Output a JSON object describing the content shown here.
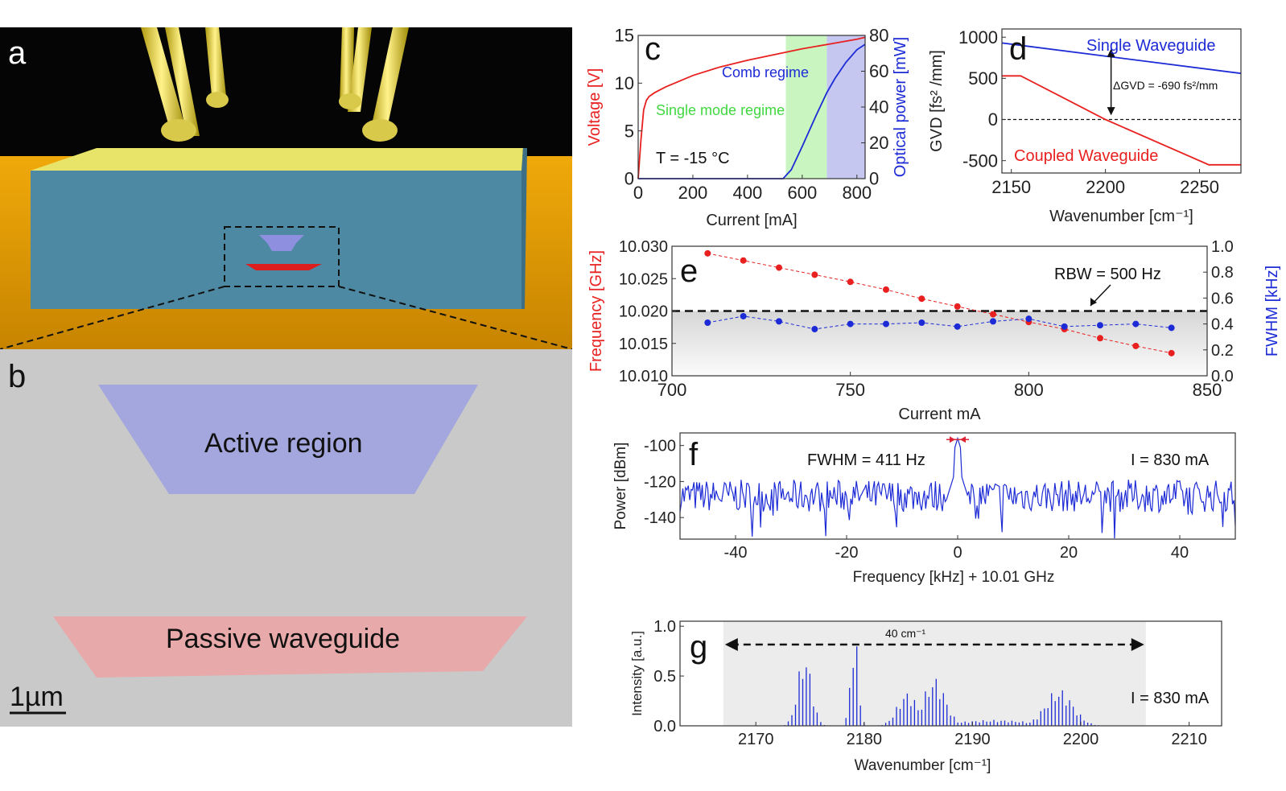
{
  "panels": {
    "a": {
      "label": "a"
    },
    "b": {
      "label": "b",
      "active_region": "Active region",
      "passive_waveguide": "Passive waveguide",
      "scale_bar": "1µm",
      "colors": {
        "background": "#c8c8c8",
        "active": "#9fa4de",
        "passive": "#e9a6a6"
      }
    }
  },
  "chart_data": [
    {
      "panel": "c",
      "type": "line",
      "xlabel": "Current [mA]",
      "ylabel": "Voltage [V]",
      "ylabel2": "Optical power [mW]",
      "xlim": [
        0,
        830
      ],
      "ylim": [
        0,
        15
      ],
      "ylim2": [
        0,
        80
      ],
      "xticks": [
        0,
        200,
        400,
        600,
        800
      ],
      "yticks": [
        0,
        5,
        10,
        15
      ],
      "yticks2": [
        0,
        20,
        40,
        60,
        80
      ],
      "annotations": {
        "comb": "Comb regime",
        "single": "Single mode regime",
        "temp": "T = -15 °C"
      },
      "regions": [
        {
          "name": "single",
          "x": [
            540,
            690
          ],
          "color": "#c8f5c0"
        },
        {
          "name": "comb",
          "x": [
            690,
            830
          ],
          "color": "#c5c7f0"
        }
      ],
      "series": [
        {
          "axis": "left",
          "color": "#e8201f",
          "x": [
            0,
            10,
            20,
            30,
            40,
            60,
            100,
            200,
            300,
            400,
            500,
            600,
            700,
            800,
            830
          ],
          "values": [
            0,
            4,
            7.2,
            8.2,
            8.6,
            9.0,
            9.6,
            10.8,
            11.7,
            12.4,
            13.0,
            13.6,
            14.1,
            14.6,
            14.8
          ]
        },
        {
          "axis": "right",
          "color": "#1d2bd6",
          "x": [
            0,
            530,
            560,
            600,
            650,
            690,
            720,
            760,
            800,
            830
          ],
          "values": [
            0,
            0,
            5,
            18,
            35,
            48,
            56,
            65,
            72,
            75
          ]
        }
      ]
    },
    {
      "panel": "d",
      "type": "line",
      "xlabel": "Wavenumber [cm⁻¹]",
      "ylabel": "GVD [fs² /mm]",
      "xlim": [
        2145,
        2272
      ],
      "ylim": [
        -650,
        1100
      ],
      "xticks": [
        2150,
        2200,
        2250
      ],
      "yticks": [
        -500,
        0,
        500,
        1000
      ],
      "annotations": {
        "single": "Single Waveguide",
        "coupled": "Coupled Waveguide",
        "delta": "ΔGVD = -690 fs²/mm"
      },
      "series": [
        {
          "name": "Single Waveguide",
          "color": "#1d2bd6",
          "x": [
            2145,
            2272
          ],
          "values": [
            930,
            560
          ]
        },
        {
          "name": "Coupled Waveguide",
          "color": "#e8201f",
          "x": [
            2145,
            2155,
            2200,
            2255,
            2272
          ],
          "values": [
            530,
            530,
            0,
            -550,
            -550
          ]
        }
      ]
    },
    {
      "panel": "e",
      "type": "scatter",
      "xlabel": "Current mA",
      "ylabel": "Frequency [GHz]",
      "ylabel2": "FWHM [kHz]",
      "xlim": [
        700,
        850
      ],
      "ylim": [
        10.01,
        10.03
      ],
      "ylim2": [
        0,
        1.0
      ],
      "xticks": [
        700,
        750,
        800,
        850
      ],
      "yticks": [
        "10.010",
        "10.015",
        "10.020",
        "10.025",
        "10.030"
      ],
      "yticks2": [
        "0.0",
        "0.2",
        "0.4",
        "0.6",
        "0.8",
        "1.0"
      ],
      "annotations": {
        "rbw": "RBW = 500 Hz"
      },
      "rbw_level": 0.5,
      "series": [
        {
          "axis": "left",
          "color": "#e8201f",
          "x": [
            710,
            720,
            730,
            740,
            750,
            760,
            770,
            780,
            790,
            800,
            810,
            820,
            830,
            840
          ],
          "values": [
            10.0289,
            10.0278,
            10.0267,
            10.0256,
            10.0245,
            10.0233,
            10.0219,
            10.0207,
            10.0195,
            10.0183,
            10.0172,
            10.0158,
            10.0146,
            10.0135
          ]
        },
        {
          "axis": "right",
          "color": "#1d2bd6",
          "x": [
            710,
            720,
            730,
            740,
            750,
            760,
            770,
            780,
            790,
            800,
            810,
            820,
            830,
            840
          ],
          "values": [
            0.41,
            0.46,
            0.42,
            0.36,
            0.4,
            0.4,
            0.41,
            0.38,
            0.42,
            0.44,
            0.38,
            0.39,
            0.4,
            0.37
          ]
        }
      ]
    },
    {
      "panel": "f",
      "type": "line",
      "xlabel": "Frequency [kHz] + 10.01 GHz",
      "ylabel": "Power [dBm]",
      "xlim": [
        -50,
        50
      ],
      "ylim": [
        -152,
        -93
      ],
      "xticks": [
        -40,
        -20,
        0,
        20,
        40
      ],
      "yticks": [
        -140,
        -120,
        -100
      ],
      "annotations": {
        "fwhm": "FWHM = 411 Hz",
        "current": "I = 830 mA"
      },
      "series": [
        {
          "color": "#1d2bd6",
          "noise_floor": -128,
          "noise_amplitude": 9,
          "peak_x": 0,
          "peak_y": -96
        }
      ]
    },
    {
      "panel": "g",
      "type": "line",
      "xlabel": "Wavenumber [cm⁻¹]",
      "ylabel": "Intensity [a.u.]",
      "xlim": [
        2163,
        2213
      ],
      "ylim": [
        0,
        1.05
      ],
      "xticks": [
        2170,
        2180,
        2190,
        2200,
        2210
      ],
      "yticks": [
        "0.0",
        "0.5",
        "1.0"
      ],
      "annotations": {
        "span": "40 cm⁻¹",
        "current": "I = 830 mA"
      },
      "shaded_x": [
        2167,
        2206
      ],
      "series": [
        {
          "color": "#1d2bd6",
          "mode_spacing": 0.333,
          "envelope": [
            [
              2174.5,
              0.75,
              0.9
            ],
            [
              2179.1,
              0.98,
              0.5
            ],
            [
              2184,
              0.35,
              1.3
            ],
            [
              2186.5,
              0.5,
              1.4
            ],
            [
              2198,
              0.38,
              1.8
            ],
            [
              2192,
              0.06,
              5
            ]
          ]
        }
      ]
    }
  ]
}
